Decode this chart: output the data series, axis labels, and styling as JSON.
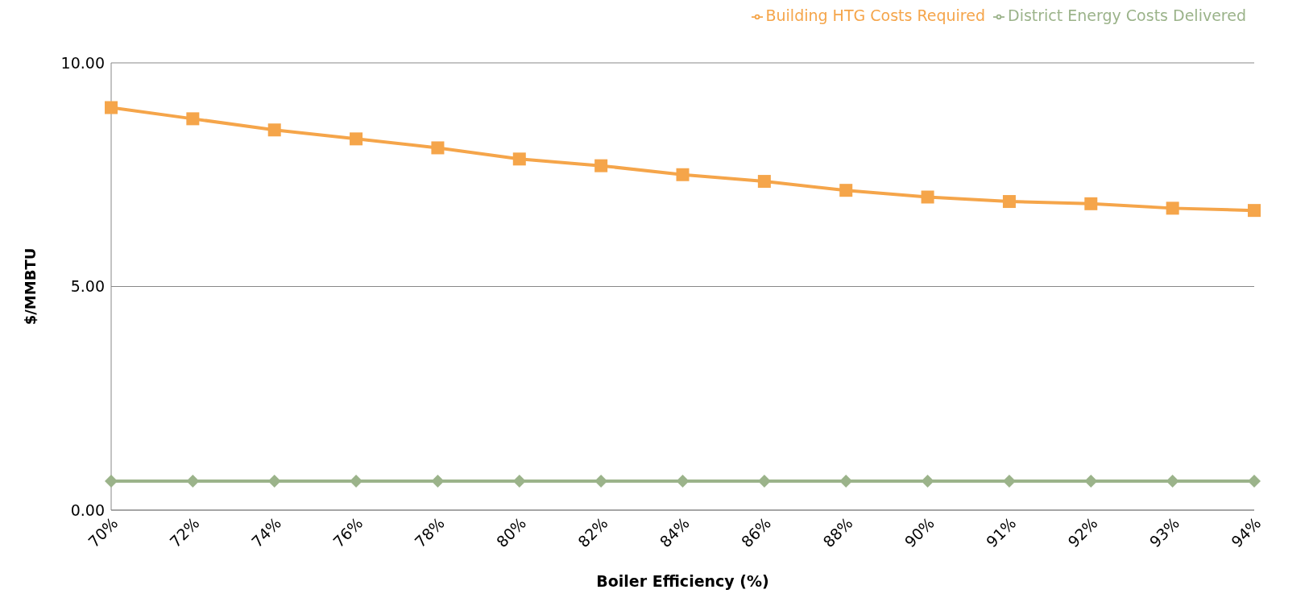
{
  "chart_data": {
    "type": "line",
    "xlabel": "Boiler Efficiency (%)",
    "ylabel": "$/MMBTU",
    "categories": [
      "70%",
      "72%",
      "74%",
      "76%",
      "78%",
      "80%",
      "82%",
      "84%",
      "86%",
      "88%",
      "90%",
      "91%",
      "92%",
      "93%",
      "94%"
    ],
    "series": [
      {
        "name": "District Energy Costs Delivered",
        "color": "#9bb38a",
        "marker": "diamond",
        "values": [
          0.65,
          0.65,
          0.65,
          0.65,
          0.65,
          0.65,
          0.65,
          0.65,
          0.65,
          0.65,
          0.65,
          0.65,
          0.65,
          0.65,
          0.65
        ]
      },
      {
        "name": "Building HTG Costs Required",
        "color": "#f5a54a",
        "marker": "square",
        "values": [
          9.0,
          8.75,
          8.5,
          8.3,
          8.1,
          7.85,
          7.7,
          7.5,
          7.35,
          7.15,
          7.0,
          6.9,
          6.85,
          6.75,
          6.7
        ]
      }
    ],
    "ylim": [
      0,
      10
    ],
    "yticks": [
      {
        "value": 0,
        "label": "0.00"
      },
      {
        "value": 5,
        "label": "5.00"
      },
      {
        "value": 10,
        "label": "10.00"
      }
    ],
    "grid": "y",
    "legend": "top right",
    "line_style": "solid"
  }
}
